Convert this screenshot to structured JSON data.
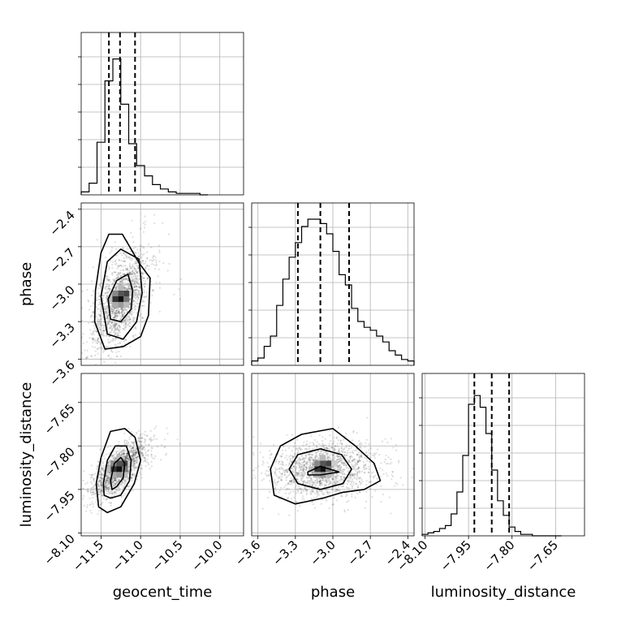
{
  "chart_data": {
    "type": "corner",
    "parameters": [
      "geocent_time",
      "phase",
      "luminosity_distance"
    ],
    "axis_labels": {
      "geocent_time": "geocent_time",
      "phase": "phase",
      "luminosity_distance": "luminosity_distance"
    },
    "ranges": {
      "geocent_time": [
        -11.75,
        -9.7
      ],
      "phase": [
        -3.65,
        -2.35
      ],
      "luminosity_distance": [
        -8.11,
        -7.55
      ]
    },
    "ticks": {
      "geocent_time": [
        -11.5,
        -11.0,
        -10.5,
        -10.0
      ],
      "phase": [
        -3.6,
        -3.3,
        -3.0,
        -2.7,
        -2.4
      ],
      "luminosity_distance": [
        -8.1,
        -7.95,
        -7.8,
        -7.65
      ]
    },
    "tick_labels": {
      "geocent_time": [
        "−11.5",
        "−11.0",
        "−10.5",
        "−10.0"
      ],
      "phase": [
        "−3.6",
        "−3.3",
        "−3.0",
        "−2.7",
        "−2.4"
      ],
      "luminosity_distance": [
        "−8.10",
        "−7.95",
        "−7.80",
        "−7.65"
      ]
    },
    "grid": true,
    "histograms": {
      "geocent_time": {
        "edges": [
          -11.75,
          -11.65,
          -11.55,
          -11.45,
          -11.35,
          -11.25,
          -11.15,
          -11.05,
          -10.95,
          -10.85,
          -10.75,
          -10.65,
          -10.55,
          -10.45,
          -10.35,
          -10.25,
          -10.15
        ],
        "counts": [
          0.02,
          0.08,
          0.36,
          0.78,
          0.93,
          0.62,
          0.35,
          0.2,
          0.13,
          0.07,
          0.04,
          0.02,
          0.01,
          0.01,
          0.01,
          0.0
        ],
        "quantiles": [
          -11.4,
          -11.26,
          -11.07
        ]
      },
      "phase": {
        "edges": [
          -3.65,
          -3.6,
          -3.55,
          -3.5,
          -3.45,
          -3.4,
          -3.35,
          -3.3,
          -3.25,
          -3.2,
          -3.15,
          -3.1,
          -3.05,
          -3.0,
          -2.95,
          -2.9,
          -2.85,
          -2.8,
          -2.75,
          -2.7,
          -2.65,
          -2.6,
          -2.55,
          -2.5,
          -2.45,
          -2.4,
          -2.35
        ],
        "counts": [
          0.03,
          0.05,
          0.13,
          0.2,
          0.41,
          0.59,
          0.74,
          0.84,
          0.95,
          1.0,
          1.0,
          0.97,
          0.9,
          0.78,
          0.62,
          0.55,
          0.39,
          0.3,
          0.26,
          0.24,
          0.2,
          0.16,
          0.1,
          0.07,
          0.04,
          0.03
        ],
        "quantiles": [
          -3.28,
          -3.1,
          -2.87
        ]
      },
      "luminosity_distance": {
        "edges": [
          -8.11,
          -8.09,
          -8.07,
          -8.05,
          -8.03,
          -8.01,
          -7.99,
          -7.97,
          -7.95,
          -7.93,
          -7.91,
          -7.89,
          -7.87,
          -7.85,
          -7.83,
          -7.81,
          -7.79,
          -7.77,
          -7.75,
          -7.73,
          -7.71,
          -7.69,
          -7.67,
          -7.65,
          -7.63
        ],
        "counts": [
          0.01,
          0.02,
          0.03,
          0.05,
          0.07,
          0.15,
          0.3,
          0.55,
          0.9,
          0.96,
          0.88,
          0.7,
          0.45,
          0.24,
          0.14,
          0.06,
          0.03,
          0.01,
          0.01,
          0.0,
          0.0,
          0.0,
          0.0,
          0.0
        ],
        "quantiles": [
          -7.93,
          -7.87,
          -7.81
        ]
      }
    },
    "pairs": [
      {
        "x": "geocent_time",
        "y": "phase",
        "mean": [
          -11.25,
          -3.12
        ],
        "sd": [
          0.17,
          0.2
        ],
        "corr": 0.55,
        "contours": [
          [
            [
              -11.41,
              -3.12
            ],
            [
              -11.3,
              -2.97
            ],
            [
              -11.16,
              -2.92
            ],
            [
              -11.1,
              -3.05
            ],
            [
              -11.12,
              -3.2
            ],
            [
              -11.25,
              -3.3
            ],
            [
              -11.38,
              -3.28
            ]
          ],
          [
            [
              -11.5,
              -3.1
            ],
            [
              -11.42,
              -2.82
            ],
            [
              -11.25,
              -2.72
            ],
            [
              -11.02,
              -2.8
            ],
            [
              -10.98,
              -3.07
            ],
            [
              -11.05,
              -3.3
            ],
            [
              -11.22,
              -3.44
            ],
            [
              -11.42,
              -3.4
            ]
          ],
          [
            [
              -11.57,
              -3.05
            ],
            [
              -11.5,
              -2.75
            ],
            [
              -11.4,
              -2.6
            ],
            [
              -11.23,
              -2.6
            ],
            [
              -11.12,
              -2.72
            ],
            [
              -11.02,
              -2.83
            ],
            [
              -10.88,
              -2.95
            ],
            [
              -10.9,
              -3.25
            ],
            [
              -11.0,
              -3.42
            ],
            [
              -11.22,
              -3.5
            ],
            [
              -11.45,
              -3.52
            ],
            [
              -11.58,
              -3.3
            ]
          ]
        ]
      },
      {
        "x": "geocent_time",
        "y": "luminosity_distance",
        "mean": [
          -11.27,
          -7.88
        ],
        "sd": [
          0.16,
          0.05
        ],
        "corr": 0.7,
        "contours": [
          [
            [
              -11.38,
              -7.92
            ],
            [
              -11.33,
              -7.86
            ],
            [
              -11.25,
              -7.84
            ],
            [
              -11.2,
              -7.86
            ],
            [
              -11.22,
              -7.91
            ],
            [
              -11.3,
              -7.94
            ],
            [
              -11.36,
              -7.95
            ]
          ],
          [
            [
              -11.47,
              -7.93
            ],
            [
              -11.42,
              -7.85
            ],
            [
              -11.32,
              -7.8
            ],
            [
              -11.18,
              -7.8
            ],
            [
              -11.12,
              -7.85
            ],
            [
              -11.14,
              -7.92
            ],
            [
              -11.25,
              -7.97
            ],
            [
              -11.38,
              -7.98
            ],
            [
              -11.46,
              -7.97
            ]
          ],
          [
            [
              -11.56,
              -7.93
            ],
            [
              -11.5,
              -7.84
            ],
            [
              -11.38,
              -7.75
            ],
            [
              -11.2,
              -7.74
            ],
            [
              -11.07,
              -7.77
            ],
            [
              -11.0,
              -7.85
            ],
            [
              -11.08,
              -7.93
            ],
            [
              -11.25,
              -8.01
            ],
            [
              -11.42,
              -8.03
            ],
            [
              -11.53,
              -8.01
            ]
          ]
        ]
      },
      {
        "x": "phase",
        "y": "luminosity_distance",
        "mean": [
          -3.08,
          -7.88
        ],
        "sd": [
          0.2,
          0.05
        ],
        "corr": 0.1,
        "contours": [
          [
            [
              -3.2,
              -7.89
            ],
            [
              -3.1,
              -7.87
            ],
            [
              -2.95,
              -7.89
            ],
            [
              -3.1,
              -7.9
            ],
            [
              -3.2,
              -7.9
            ]
          ],
          [
            [
              -3.35,
              -7.88
            ],
            [
              -3.28,
              -7.83
            ],
            [
              -3.1,
              -7.81
            ],
            [
              -2.93,
              -7.83
            ],
            [
              -2.85,
              -7.88
            ],
            [
              -2.92,
              -7.93
            ],
            [
              -3.1,
              -7.95
            ],
            [
              -3.28,
              -7.93
            ]
          ],
          [
            [
              -3.5,
              -7.88
            ],
            [
              -3.42,
              -7.8
            ],
            [
              -3.25,
              -7.76
            ],
            [
              -3.0,
              -7.74
            ],
            [
              -2.82,
              -7.8
            ],
            [
              -2.67,
              -7.86
            ],
            [
              -2.62,
              -7.92
            ],
            [
              -2.75,
              -7.95
            ],
            [
              -2.92,
              -7.96
            ],
            [
              -3.08,
              -7.98
            ],
            [
              -3.3,
              -8.0
            ],
            [
              -3.47,
              -7.97
            ]
          ]
        ]
      }
    ]
  }
}
